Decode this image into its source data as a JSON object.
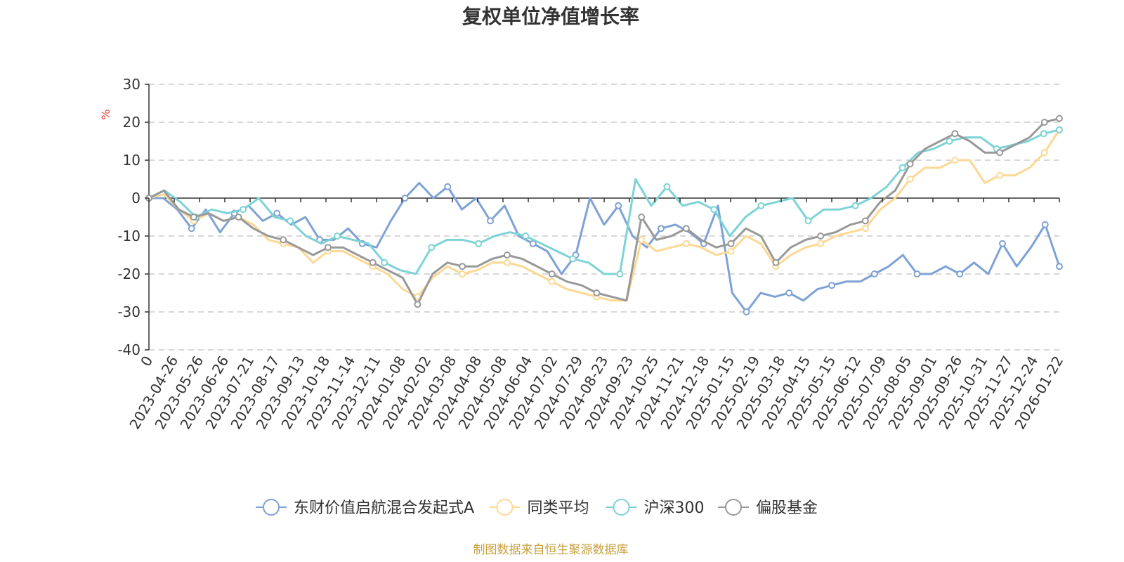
{
  "chart_data": {
    "type": "line",
    "title": "复权单位净值增长率",
    "ylabel": "%",
    "xlabel": "",
    "ylim": [
      -40,
      30
    ],
    "y_ticks": [
      "30",
      "20",
      "10",
      "0",
      "-10",
      "-20",
      "-30",
      "-40"
    ],
    "y_tick_values": [
      30,
      20,
      10,
      0,
      -10,
      -20,
      -30,
      -40
    ],
    "x_tick_labels": [
      "0",
      "2023-04-26",
      "2023-05-26",
      "2023-06-26",
      "2023-07-21",
      "2023-08-17",
      "2023-09-13",
      "2023-10-18",
      "2023-11-14",
      "2023-12-11",
      "2024-01-08",
      "2024-02-02",
      "2024-03-08",
      "2024-04-08",
      "2024-05-08",
      "2024-06-04",
      "2024-07-02",
      "2024-07-29",
      "2024-08-23",
      "2024-09-23",
      "2024-10-25",
      "2024-11-21",
      "2024-12-18",
      "2025-01-15",
      "2025-02-19",
      "2025-03-18",
      "2025-04-15",
      "2025-05-15",
      "2025-06-12",
      "2025-07-09",
      "2025-08-05",
      "2025-09-01",
      "2025-09-26",
      "2025-10-31",
      "2025-11-27",
      "2025-12-24",
      "2026-01-22"
    ],
    "grid": true,
    "legend_position": "bottom",
    "series": [
      {
        "name": "东财价值启航混合发起式A",
        "color": "#7ea2d6",
        "values": [
          0,
          0,
          -3,
          -8,
          -3,
          -9,
          -4,
          -2,
          -6,
          -4,
          -7,
          -5,
          -11,
          -11,
          -8,
          -12,
          -13,
          -6,
          0,
          4,
          0,
          3,
          -3,
          0,
          -6,
          -2,
          -10,
          -12,
          -14,
          -20,
          -15,
          0,
          -7,
          -2,
          -10,
          -13,
          -8,
          -7,
          -9,
          -12,
          -2,
          -25,
          -30,
          -25,
          -26,
          -25,
          -27,
          -24,
          -23,
          -22,
          -22,
          -20,
          -18,
          -15,
          -20,
          -20,
          -18,
          -20,
          -17,
          -20,
          -12,
          -18,
          -13,
          -7,
          -18
        ]
      },
      {
        "name": "同类平均",
        "color": "#fdd893",
        "values": [
          0,
          1,
          -3,
          -6,
          -4,
          -6,
          -5,
          -7,
          -11,
          -12,
          -13,
          -17,
          -14,
          -14,
          -16,
          -18,
          -20,
          -24,
          -26,
          -21,
          -18,
          -20,
          -19,
          -17,
          -17,
          -18,
          -20,
          -22,
          -24,
          -25,
          -26,
          -27,
          -27,
          -11,
          -14,
          -13,
          -12,
          -13,
          -15,
          -14,
          -10,
          -12,
          -18,
          -15,
          -13,
          -12,
          -10,
          -9,
          -8,
          -3,
          0,
          5,
          8,
          8,
          10,
          10,
          4,
          6,
          6,
          8,
          12,
          18
        ]
      },
      {
        "name": "沪深300",
        "color": "#7dd3d6",
        "values": [
          0,
          2,
          -1,
          -5,
          -3,
          -4,
          -3,
          0,
          -5,
          -6,
          -10,
          -12,
          -10,
          -11,
          -12,
          -17,
          -19,
          -20,
          -13,
          -11,
          -11,
          -12,
          -10,
          -9,
          -10,
          -12,
          -14,
          -16,
          -17,
          -20,
          -20,
          5,
          -2,
          3,
          -2,
          -1,
          -3,
          -10,
          -5,
          -2,
          -1,
          0,
          -6,
          -3,
          -3,
          -2,
          0,
          3,
          8,
          12,
          13,
          15,
          16,
          16,
          13,
          14,
          15,
          17,
          18
        ]
      },
      {
        "name": "偏股基金",
        "color": "#999999",
        "values": [
          0,
          2,
          -3,
          -5,
          -4,
          -6,
          -5,
          -8,
          -10,
          -11,
          -13,
          -15,
          -13,
          -13,
          -15,
          -17,
          -19,
          -21,
          -28,
          -20,
          -17,
          -18,
          -18,
          -16,
          -15,
          -16,
          -18,
          -20,
          -22,
          -23,
          -25,
          -26,
          -27,
          -5,
          -11,
          -10,
          -8,
          -11,
          -13,
          -12,
          -8,
          -10,
          -17,
          -13,
          -11,
          -10,
          -9,
          -7,
          -6,
          -1,
          2,
          9,
          13,
          15,
          17,
          15,
          12,
          12,
          14,
          16,
          20,
          21
        ]
      }
    ]
  },
  "source_text": "制图数据来自恒生聚源数据库",
  "colors": {
    "axis": "#333333",
    "grid": "#cccccc",
    "unit": "#e63b3b",
    "source": "#c9a13c"
  }
}
